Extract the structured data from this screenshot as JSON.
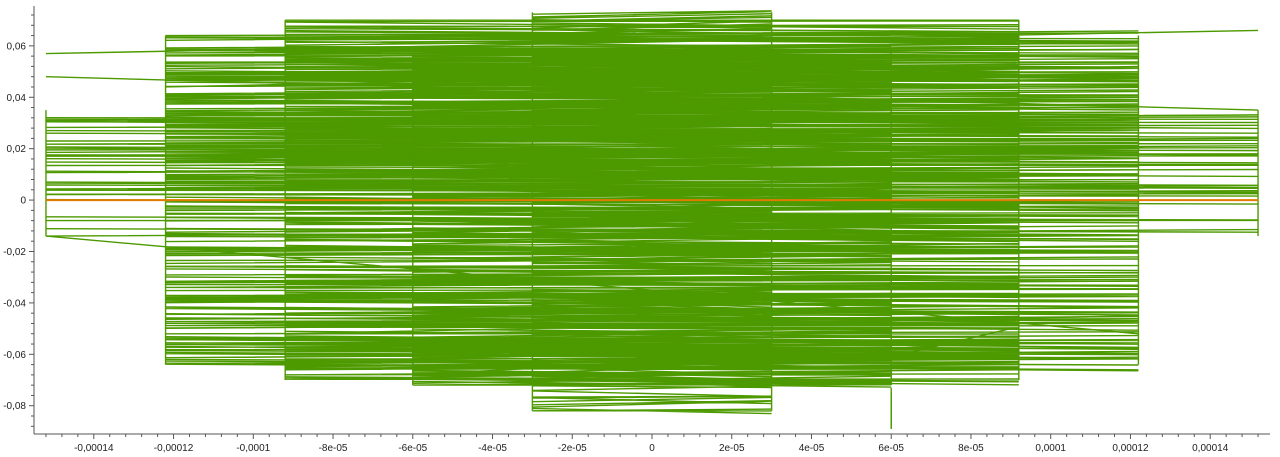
{
  "chart_data": {
    "type": "line",
    "title": "",
    "xlabel": "",
    "ylabel": "",
    "xlim": [
      -0.000155,
      0.000155
    ],
    "ylim": [
      -0.091,
      0.0755
    ],
    "x_ticks": [
      {
        "value": -0.00014,
        "label": "-0,00014"
      },
      {
        "value": -0.00012,
        "label": "-0,00012"
      },
      {
        "value": -0.0001,
        "label": "-0,0001"
      },
      {
        "value": -8e-05,
        "label": "-8e-05"
      },
      {
        "value": -6e-05,
        "label": "-6e-05"
      },
      {
        "value": -4e-05,
        "label": "-4e-05"
      },
      {
        "value": -2e-05,
        "label": "-2e-05"
      },
      {
        "value": 0,
        "label": "0"
      },
      {
        "value": 2e-05,
        "label": "2e-05"
      },
      {
        "value": 4e-05,
        "label": "4e-05"
      },
      {
        "value": 6e-05,
        "label": "6e-05"
      },
      {
        "value": 8e-05,
        "label": "8e-05"
      },
      {
        "value": 0.0001,
        "label": "0,0001"
      },
      {
        "value": 0.00012,
        "label": "0,00012"
      },
      {
        "value": 0.00014,
        "label": "0,00014"
      }
    ],
    "y_ticks": [
      {
        "value": 0.06,
        "label": "0,06"
      },
      {
        "value": 0.04,
        "label": "0,04"
      },
      {
        "value": 0.02,
        "label": "0,02"
      },
      {
        "value": 0,
        "label": "0"
      },
      {
        "value": -0.02,
        "label": "-0,02"
      },
      {
        "value": -0.04,
        "label": "-0,04"
      },
      {
        "value": -0.06,
        "label": "-0,06"
      },
      {
        "value": -0.08,
        "label": "-0,08"
      }
    ],
    "grid": false,
    "legend": "none",
    "series": [
      {
        "color": "#4d9900",
        "x": [
          -0.000152,
          0.000152,
          -0.000152,
          0.000152,
          -0.000122,
          0.000122,
          -0.000122,
          0.000122,
          -9.2e-05,
          9.2e-05,
          -9.2e-05,
          9.2e-05,
          -6e-05,
          6e-05,
          -6e-05,
          6e-05,
          -3e-05,
          3e-05,
          -3e-05,
          3e-05,
          6e-05,
          9e-05,
          0.000122,
          -9.2e-05,
          9.2e-05,
          -6e-05,
          6e-05,
          -0.000122,
          0.000122,
          -0.000152,
          0.000152
        ],
        "y": [
          0.057,
          0.066,
          0.048,
          0.035,
          0.064,
          0.065,
          0.044,
          0.052,
          0.07,
          0.07,
          0.057,
          0.056,
          0.055,
          0.051,
          0.049,
          0.048,
          0.046,
          0.045,
          0.043,
          0.042,
          -0.061,
          -0.05,
          -0.045,
          -0.052,
          -0.055,
          -0.068,
          -0.063,
          -0.062,
          -0.052,
          -0.014,
          -0.022
        ],
        "note": ""
      },
      {
        "color": "#e07b00",
        "x": [
          -0.000152,
          0.000152
        ],
        "y": [
          0,
          0
        ]
      }
    ],
    "band": {
      "color": "#4d9900",
      "segments": [
        {
          "x0": -0.000152,
          "x1": 0.000152,
          "y0": -0.014,
          "y1": 0.035
        },
        {
          "x0": -0.000122,
          "x1": 0.000122,
          "y0": -0.064,
          "y1": 0.064
        },
        {
          "x0": -9.2e-05,
          "x1": 9.2e-05,
          "y0": -0.07,
          "y1": 0.07
        },
        {
          "x0": -6e-05,
          "x1": 6e-05,
          "y0": -0.072,
          "y1": 0.057
        },
        {
          "x0": -3e-05,
          "x1": 3e-05,
          "y0": -0.082,
          "y1": 0.073
        },
        {
          "x0": 6e-05,
          "x1": 6e-05,
          "y0": -0.089,
          "y1": -0.075
        }
      ]
    }
  }
}
